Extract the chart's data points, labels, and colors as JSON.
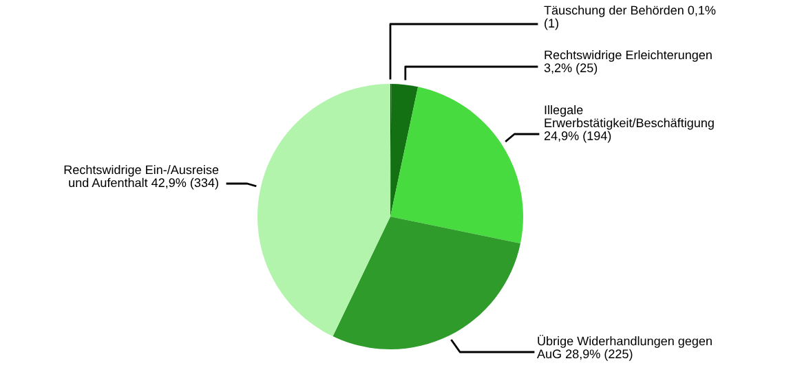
{
  "chart_data": {
    "type": "pie",
    "categories": [
      "Täuschung der Behörden 0,1%\n(1)",
      "Rechtswidrige Erleichterungen\n3,2% (25)",
      "Illegale\nErwerbstätigkeit/Beschäftigung\n24,9% (194)",
      "Übrige Widerhandlungen gegen\nAuG 28,9% (225)",
      "Rechtswidrige Ein-/Ausreise\nund Aufenthalt 42,9% (334)"
    ],
    "values": [
      1,
      25,
      194,
      225,
      334
    ],
    "colors": [
      "#0b500b",
      "#137013",
      "#47db3f",
      "#2f9b2a",
      "#b3f4ad"
    ],
    "legend": false
  }
}
